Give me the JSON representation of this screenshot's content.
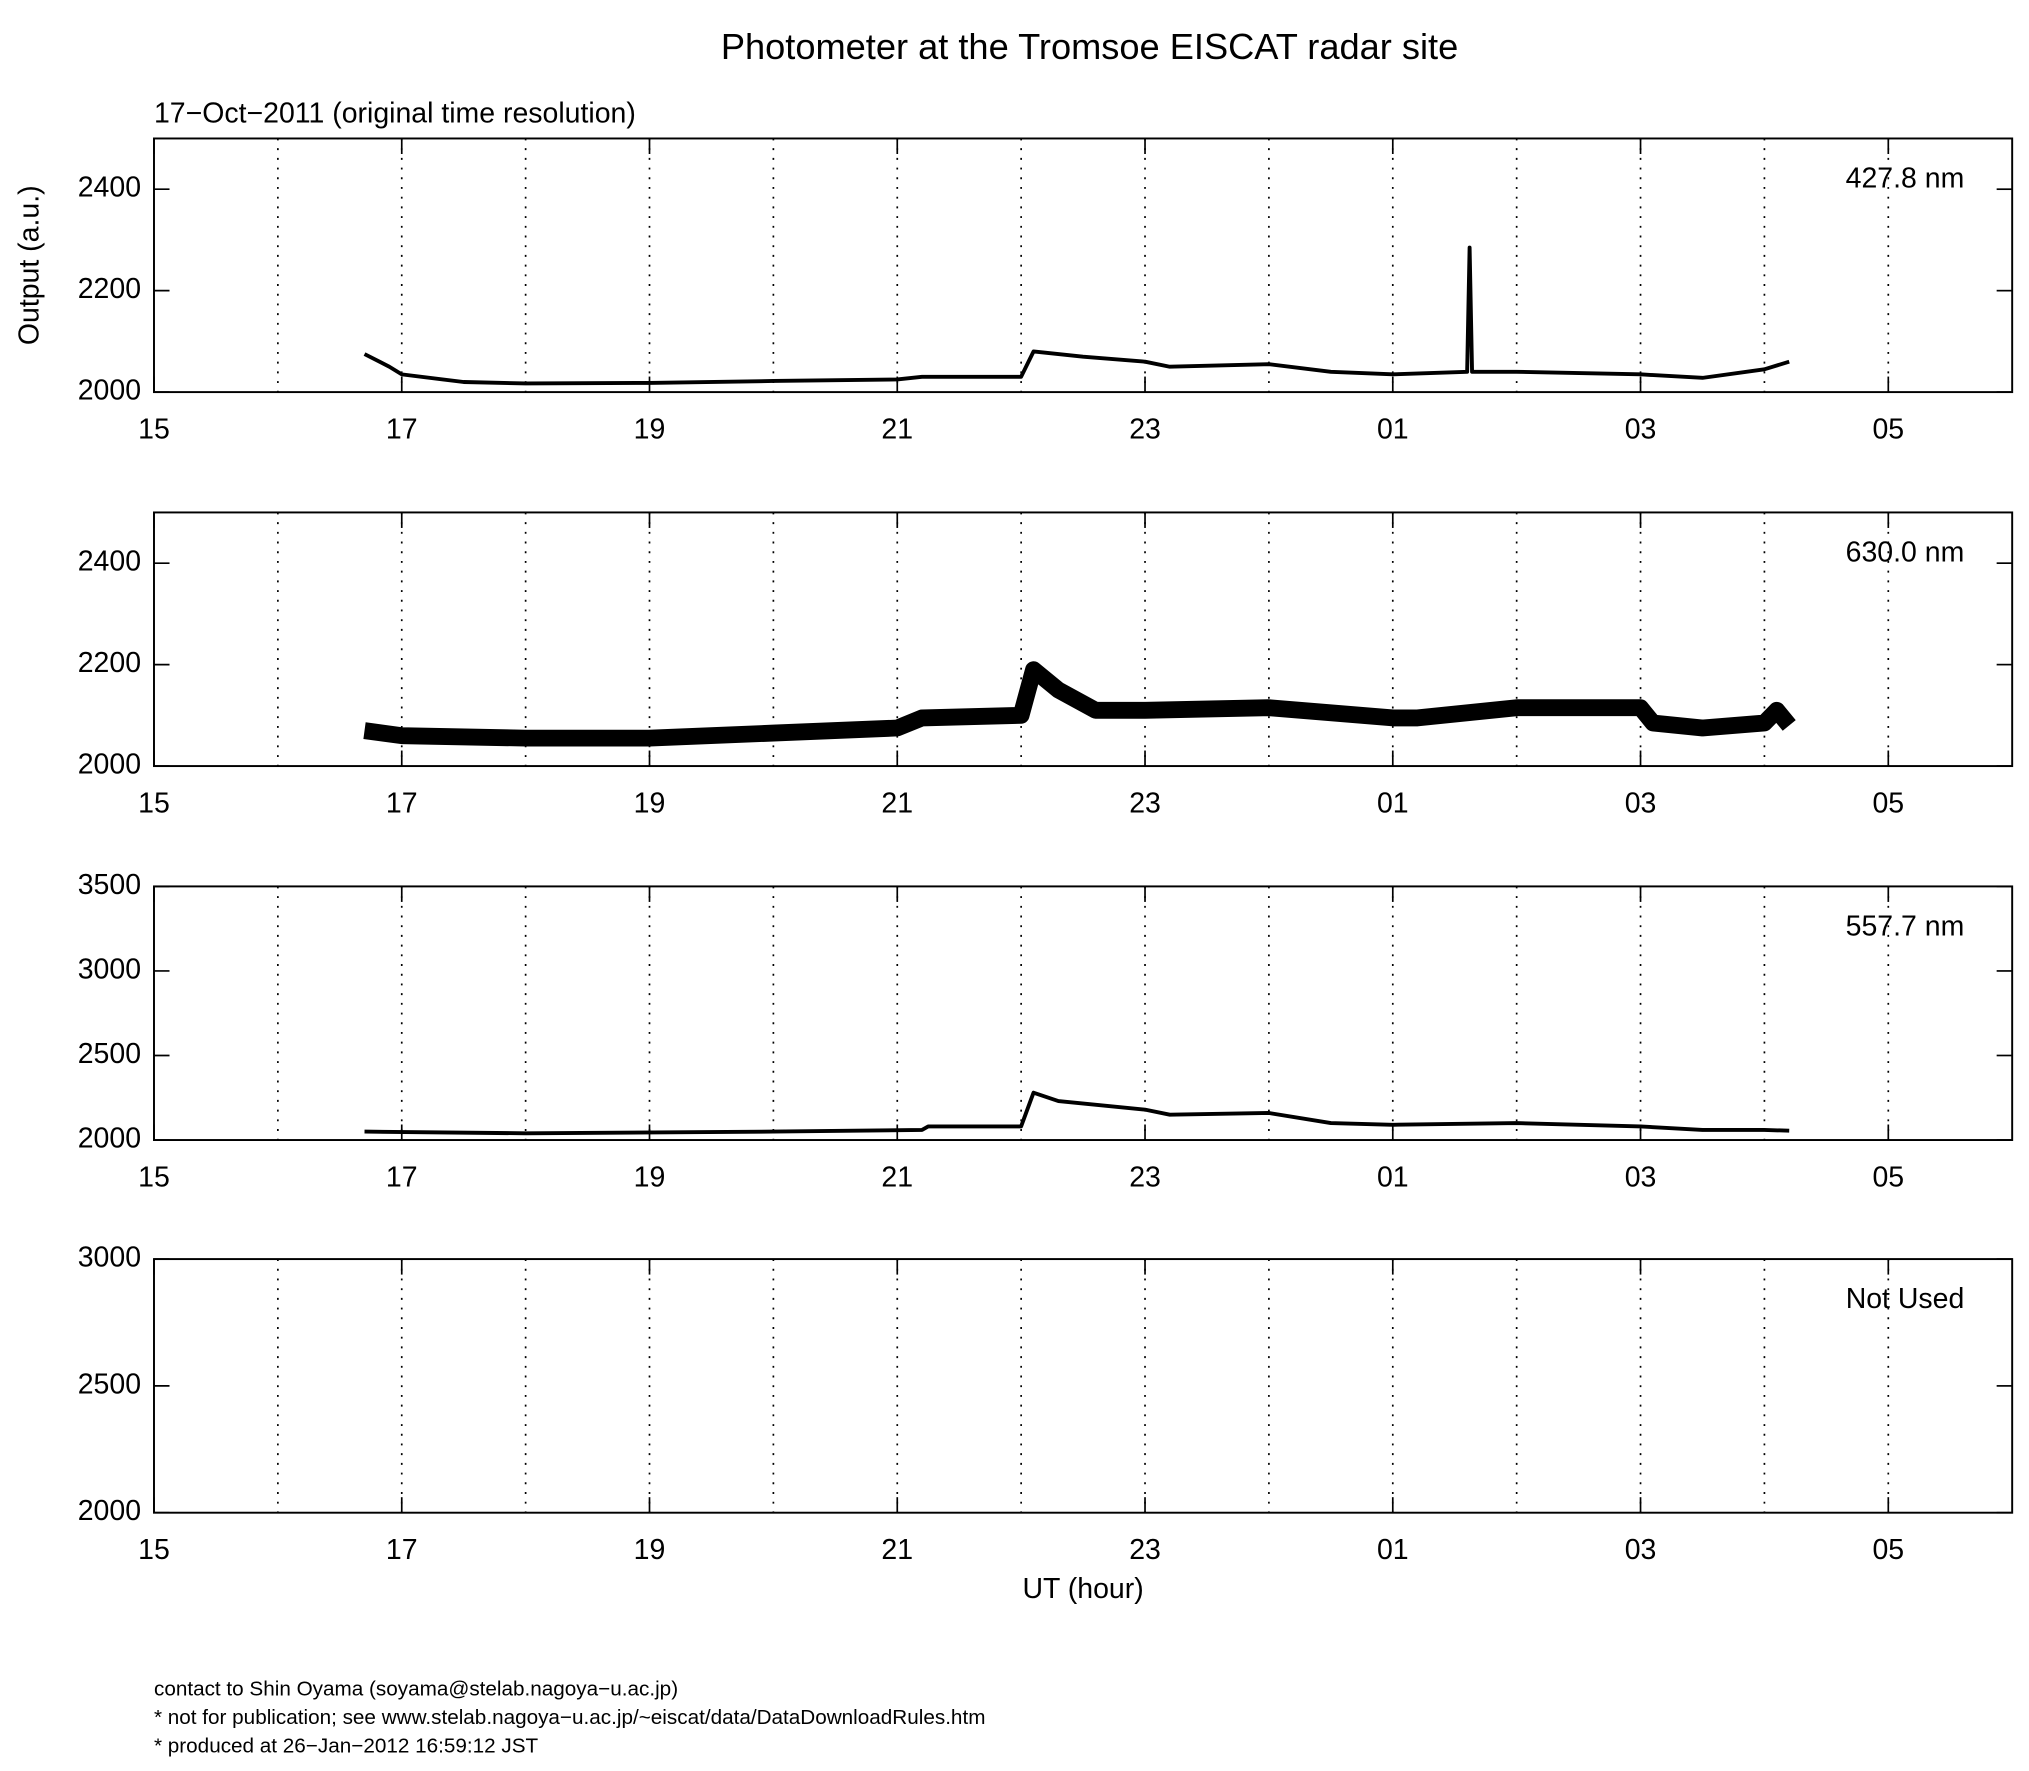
{
  "title": "Photometer at the Tromsoe EISCAT radar site",
  "subtitle": "17−Oct−2011 (original time resolution)",
  "chart_data": [
    {
      "type": "line",
      "annotation": "427.8 nm",
      "ylabel": "Output (a.u.)",
      "color": "#000000",
      "x": [
        16.7,
        16.9,
        17.0,
        17.5,
        18.0,
        19.0,
        20.0,
        21.0,
        21.2,
        22.0,
        22.1,
        22.5,
        23.0,
        23.2,
        24.0,
        24.5,
        25.0,
        25.6,
        25.62,
        25.64,
        26.0,
        27.0,
        27.5,
        28.0,
        28.2
      ],
      "values": [
        2075,
        2050,
        2035,
        2020,
        2017,
        2018,
        2022,
        2025,
        2030,
        2030,
        2080,
        2070,
        2060,
        2050,
        2055,
        2040,
        2035,
        2040,
        2285,
        2040,
        2040,
        2035,
        2028,
        2045,
        2060
      ],
      "xlim": [
        15,
        30
      ],
      "ylim": [
        2000,
        2500
      ],
      "xticks": [
        15,
        17,
        19,
        21,
        23,
        {
          "value": 25,
          "label": "01"
        },
        {
          "value": 27,
          "label": "03"
        },
        {
          "value": 29,
          "label": "05"
        }
      ],
      "xgrid": [
        16,
        17,
        18,
        19,
        20,
        21,
        22,
        23,
        24,
        25,
        26,
        27,
        28,
        29
      ],
      "yticks": [
        2000,
        2200,
        2400
      ]
    },
    {
      "type": "line",
      "annotation": "630.0 nm",
      "color": "#000000",
      "x": [
        16.7,
        17.0,
        18.0,
        19.0,
        20.0,
        21.0,
        21.2,
        22.0,
        22.1,
        22.3,
        22.6,
        23.0,
        24.0,
        25.0,
        25.2,
        26.0,
        27.0,
        27.1,
        27.5,
        28.0,
        28.1,
        28.2
      ],
      "values": [
        2070,
        2060,
        2055,
        2055,
        2065,
        2075,
        2095,
        2100,
        2190,
        2150,
        2110,
        2110,
        2115,
        2095,
        2095,
        2115,
        2115,
        2085,
        2075,
        2085,
        2110,
        2080
      ],
      "xlim": [
        15,
        30
      ],
      "ylim": [
        2000,
        2500
      ],
      "xticks": [
        15,
        17,
        19,
        21,
        23,
        {
          "value": 25,
          "label": "01"
        },
        {
          "value": 27,
          "label": "03"
        },
        {
          "value": 29,
          "label": "05"
        }
      ],
      "xgrid": [
        16,
        17,
        18,
        19,
        20,
        21,
        22,
        23,
        24,
        25,
        26,
        27,
        28,
        29
      ],
      "yticks": [
        2000,
        2200,
        2400
      ]
    },
    {
      "type": "line",
      "annotation": "557.7 nm",
      "color": "#000000",
      "x": [
        16.7,
        18.0,
        20.0,
        21.2,
        21.25,
        22.0,
        22.1,
        22.3,
        23.0,
        23.2,
        24.0,
        24.5,
        25.0,
        26.0,
        27.0,
        27.5,
        28.0,
        28.2
      ],
      "values": [
        2050,
        2040,
        2050,
        2060,
        2080,
        2080,
        2280,
        2230,
        2180,
        2150,
        2160,
        2100,
        2090,
        2100,
        2080,
        2060,
        2060,
        2055
      ],
      "xlim": [
        15,
        30
      ],
      "ylim": [
        2000,
        3500
      ],
      "xticks": [
        15,
        17,
        19,
        21,
        23,
        {
          "value": 25,
          "label": "01"
        },
        {
          "value": 27,
          "label": "03"
        },
        {
          "value": 29,
          "label": "05"
        }
      ],
      "xgrid": [
        16,
        17,
        18,
        19,
        20,
        21,
        22,
        23,
        24,
        25,
        26,
        27,
        28,
        29
      ],
      "yticks": [
        2000,
        2500,
        3000,
        3500
      ]
    },
    {
      "type": "line",
      "annotation": "Not Used",
      "xlabel": "UT (hour)",
      "xlim": [
        15,
        30
      ],
      "ylim": [
        2000,
        3000
      ],
      "xticks": [
        15,
        17,
        19,
        21,
        23,
        {
          "value": 25,
          "label": "01"
        },
        {
          "value": 27,
          "label": "03"
        },
        {
          "value": 29,
          "label": "05"
        }
      ],
      "xgrid": [
        16,
        17,
        18,
        19,
        20,
        21,
        22,
        23,
        24,
        25,
        26,
        27,
        28,
        29
      ],
      "yticks": [
        2000,
        2500,
        3000
      ]
    }
  ],
  "footer": [
    "contact to Shin Oyama (soyama@stelab.nagoya−u.ac.jp)",
    "* not for publication; see www.stelab.nagoya−u.ac.jp/~eiscat/data/DataDownloadRules.htm",
    "* produced at 26−Jan−2012 16:59:12 JST"
  ]
}
